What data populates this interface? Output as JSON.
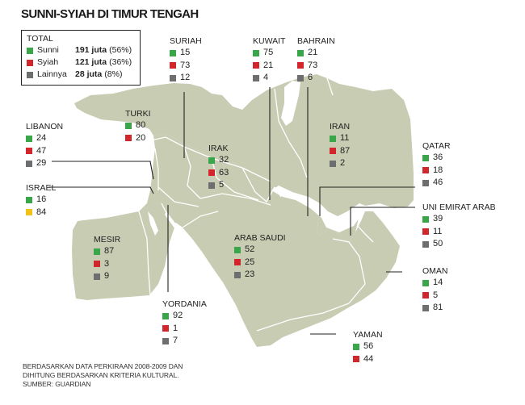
{
  "title": "SUNNI-SYIAH DI TIMUR TENGAH",
  "colors": {
    "sunni": "#3aa64a",
    "syiah": "#d2262d",
    "lainnya": "#6d6e70",
    "israel_other": "#f2c316",
    "land": "#c7ccb2",
    "border": "#ffffff",
    "water": "#ffffff"
  },
  "total": {
    "heading": "TOTAL",
    "rows": [
      {
        "label": "Sunni",
        "value": "191 juta",
        "pct": "(56%)",
        "color": "#3aa64a"
      },
      {
        "label": "Syiah",
        "value": "121 juta",
        "pct": "(36%)",
        "color": "#d2262d"
      },
      {
        "label": "Lainnya",
        "value": "28 juta",
        "pct": "(8%)",
        "color": "#6d6e70"
      }
    ]
  },
  "countries": [
    {
      "name": "SURIAH",
      "values": [
        15,
        73,
        12
      ],
      "colors": [
        "#3aa64a",
        "#d2262d",
        "#6d6e70"
      ]
    },
    {
      "name": "KUWAIT",
      "values": [
        75,
        21,
        4
      ],
      "colors": [
        "#3aa64a",
        "#d2262d",
        "#6d6e70"
      ]
    },
    {
      "name": "BAHRAIN",
      "values": [
        21,
        73,
        6
      ],
      "colors": [
        "#3aa64a",
        "#d2262d",
        "#6d6e70"
      ]
    },
    {
      "name": "TURKI",
      "values": [
        80,
        20
      ],
      "colors": [
        "#3aa64a",
        "#d2262d"
      ]
    },
    {
      "name": "LIBANON",
      "values": [
        24,
        47,
        29
      ],
      "colors": [
        "#3aa64a",
        "#d2262d",
        "#6d6e70"
      ]
    },
    {
      "name": "IRAK",
      "values": [
        32,
        63,
        5
      ],
      "colors": [
        "#3aa64a",
        "#d2262d",
        "#6d6e70"
      ]
    },
    {
      "name": "IRAN",
      "values": [
        11,
        87,
        2
      ],
      "colors": [
        "#3aa64a",
        "#d2262d",
        "#6d6e70"
      ]
    },
    {
      "name": "QATAR",
      "values": [
        36,
        18,
        46
      ],
      "colors": [
        "#3aa64a",
        "#d2262d",
        "#6d6e70"
      ]
    },
    {
      "name": "ISRAEL",
      "values": [
        16,
        84
      ],
      "colors": [
        "#3aa64a",
        "#f2c316"
      ]
    },
    {
      "name": "UNI EMIRAT ARAB",
      "values": [
        39,
        11,
        50
      ],
      "colors": [
        "#3aa64a",
        "#d2262d",
        "#6d6e70"
      ]
    },
    {
      "name": "MESIR",
      "values": [
        87,
        3,
        9
      ],
      "colors": [
        "#3aa64a",
        "#d2262d",
        "#6d6e70"
      ]
    },
    {
      "name": "ARAB SAUDI",
      "values": [
        52,
        25,
        23
      ],
      "colors": [
        "#3aa64a",
        "#d2262d",
        "#6d6e70"
      ]
    },
    {
      "name": "OMAN",
      "values": [
        14,
        5,
        81
      ],
      "colors": [
        "#3aa64a",
        "#d2262d",
        "#6d6e70"
      ]
    },
    {
      "name": "YORDANIA",
      "values": [
        92,
        1,
        7
      ],
      "colors": [
        "#3aa64a",
        "#d2262d",
        "#6d6e70"
      ]
    },
    {
      "name": "YAMAN",
      "values": [
        56,
        44
      ],
      "colors": [
        "#3aa64a",
        "#d2262d"
      ]
    }
  ],
  "footnote": [
    "BERDASARKAN DATA PERKIRAAN 2008-2009 DAN",
    "DIHITUNG BERDASARKAN KRITERIA KULTURAL.",
    "SUMBER: GUARDIAN"
  ]
}
